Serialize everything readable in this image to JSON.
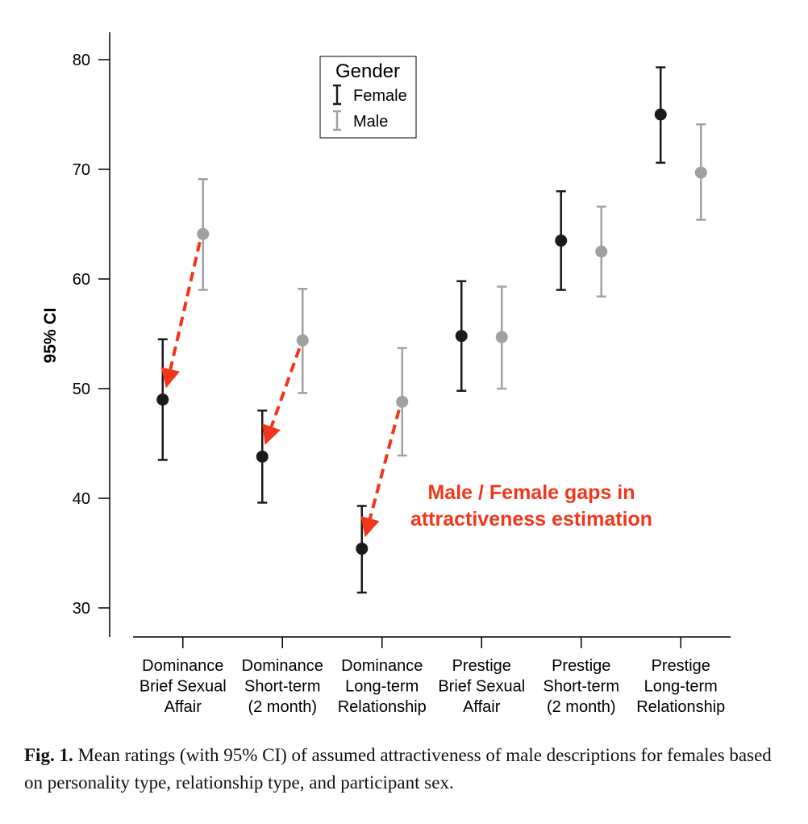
{
  "chart_data": {
    "type": "errorbar",
    "ylabel": "95% CI",
    "xlabel": "",
    "ylim": [
      27,
      83
    ],
    "yticks": [
      30,
      40,
      50,
      60,
      70,
      80
    ],
    "categories": [
      [
        "Dominance",
        "Brief Sexual",
        "Affair"
      ],
      [
        "Dominance",
        "Short-term",
        "(2 month)"
      ],
      [
        "Dominance",
        "Long-term",
        "Relationship"
      ],
      [
        "Prestige",
        "Brief Sexual",
        "Affair"
      ],
      [
        "Prestige",
        "Short-term",
        "(2 month)"
      ],
      [
        "Prestige",
        "Long-term",
        "Relationship"
      ]
    ],
    "legend": {
      "title": "Gender",
      "position": "top-center"
    },
    "series": [
      {
        "name": "Female",
        "color": "#1a1a1a",
        "mean": [
          49.0,
          43.8,
          35.4,
          54.8,
          63.5,
          75.0
        ],
        "lower": [
          43.5,
          39.6,
          31.4,
          49.8,
          59.0,
          70.6
        ],
        "upper": [
          54.5,
          48.0,
          39.3,
          59.8,
          68.0,
          79.3
        ]
      },
      {
        "name": "Male",
        "color": "#a0a0a0",
        "mean": [
          64.1,
          54.4,
          48.8,
          54.7,
          62.5,
          69.7
        ],
        "lower": [
          59.0,
          49.6,
          43.9,
          50.0,
          58.4,
          65.4
        ],
        "upper": [
          69.1,
          59.1,
          53.7,
          59.3,
          66.6,
          74.1
        ]
      }
    ],
    "annotation": {
      "lines": [
        "Male / Female gaps in",
        "attractiveness estimation"
      ],
      "color": "#f2361b",
      "arrows": [
        {
          "from": [
            0,
            64.1
          ],
          "to": [
            0,
            49.0
          ]
        },
        {
          "from": [
            1,
            54.4
          ],
          "to": [
            1,
            43.8
          ]
        },
        {
          "from": [
            2,
            48.8
          ],
          "to": [
            2,
            35.4
          ]
        }
      ]
    }
  },
  "caption": {
    "label": "Fig. 1.",
    "text": " Mean ratings (with 95% CI) of assumed attractiveness of male descriptions for females based on personality type, relationship type, and participant sex."
  }
}
